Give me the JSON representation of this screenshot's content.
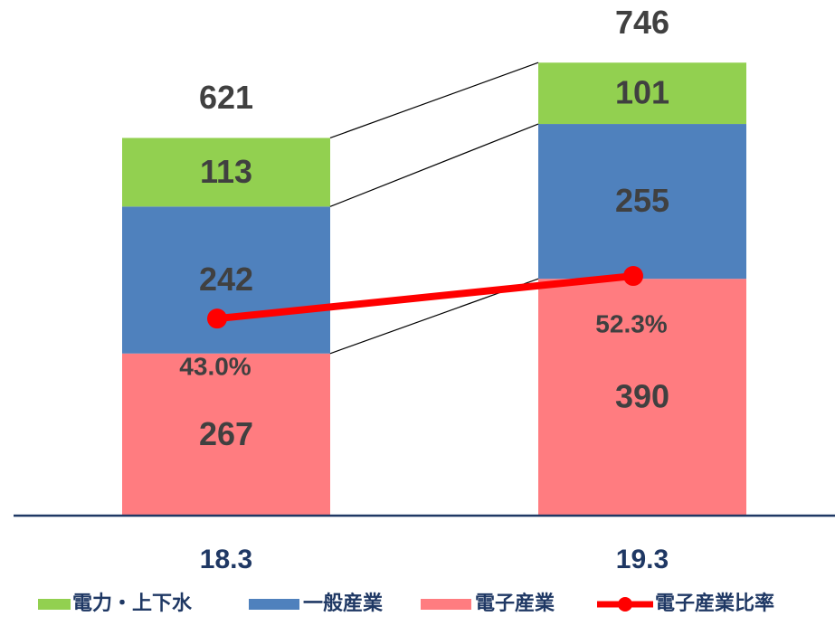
{
  "chart_data": {
    "type": "bar",
    "categories": [
      "18.3",
      "19.3"
    ],
    "series": [
      {
        "name": "電子産業",
        "color": "#ff7c80",
        "values": [
          267,
          390
        ]
      },
      {
        "name": "一般産業",
        "color": "#4f81bd",
        "values": [
          242,
          255
        ]
      },
      {
        "name": "電力・上下水",
        "color": "#92d050",
        "values": [
          113,
          101
        ]
      },
      {
        "name": "電子産業比率",
        "type": "line",
        "axis": "y2",
        "color": "#ff0000",
        "values": [
          43.0,
          52.3
        ],
        "value_labels": [
          "43.0%",
          "52.3%"
        ]
      }
    ],
    "totals": [
      621,
      746
    ],
    "stacked": true,
    "ylim": [
      0,
      800
    ],
    "y2lim": [
      0,
      106
    ]
  }
}
